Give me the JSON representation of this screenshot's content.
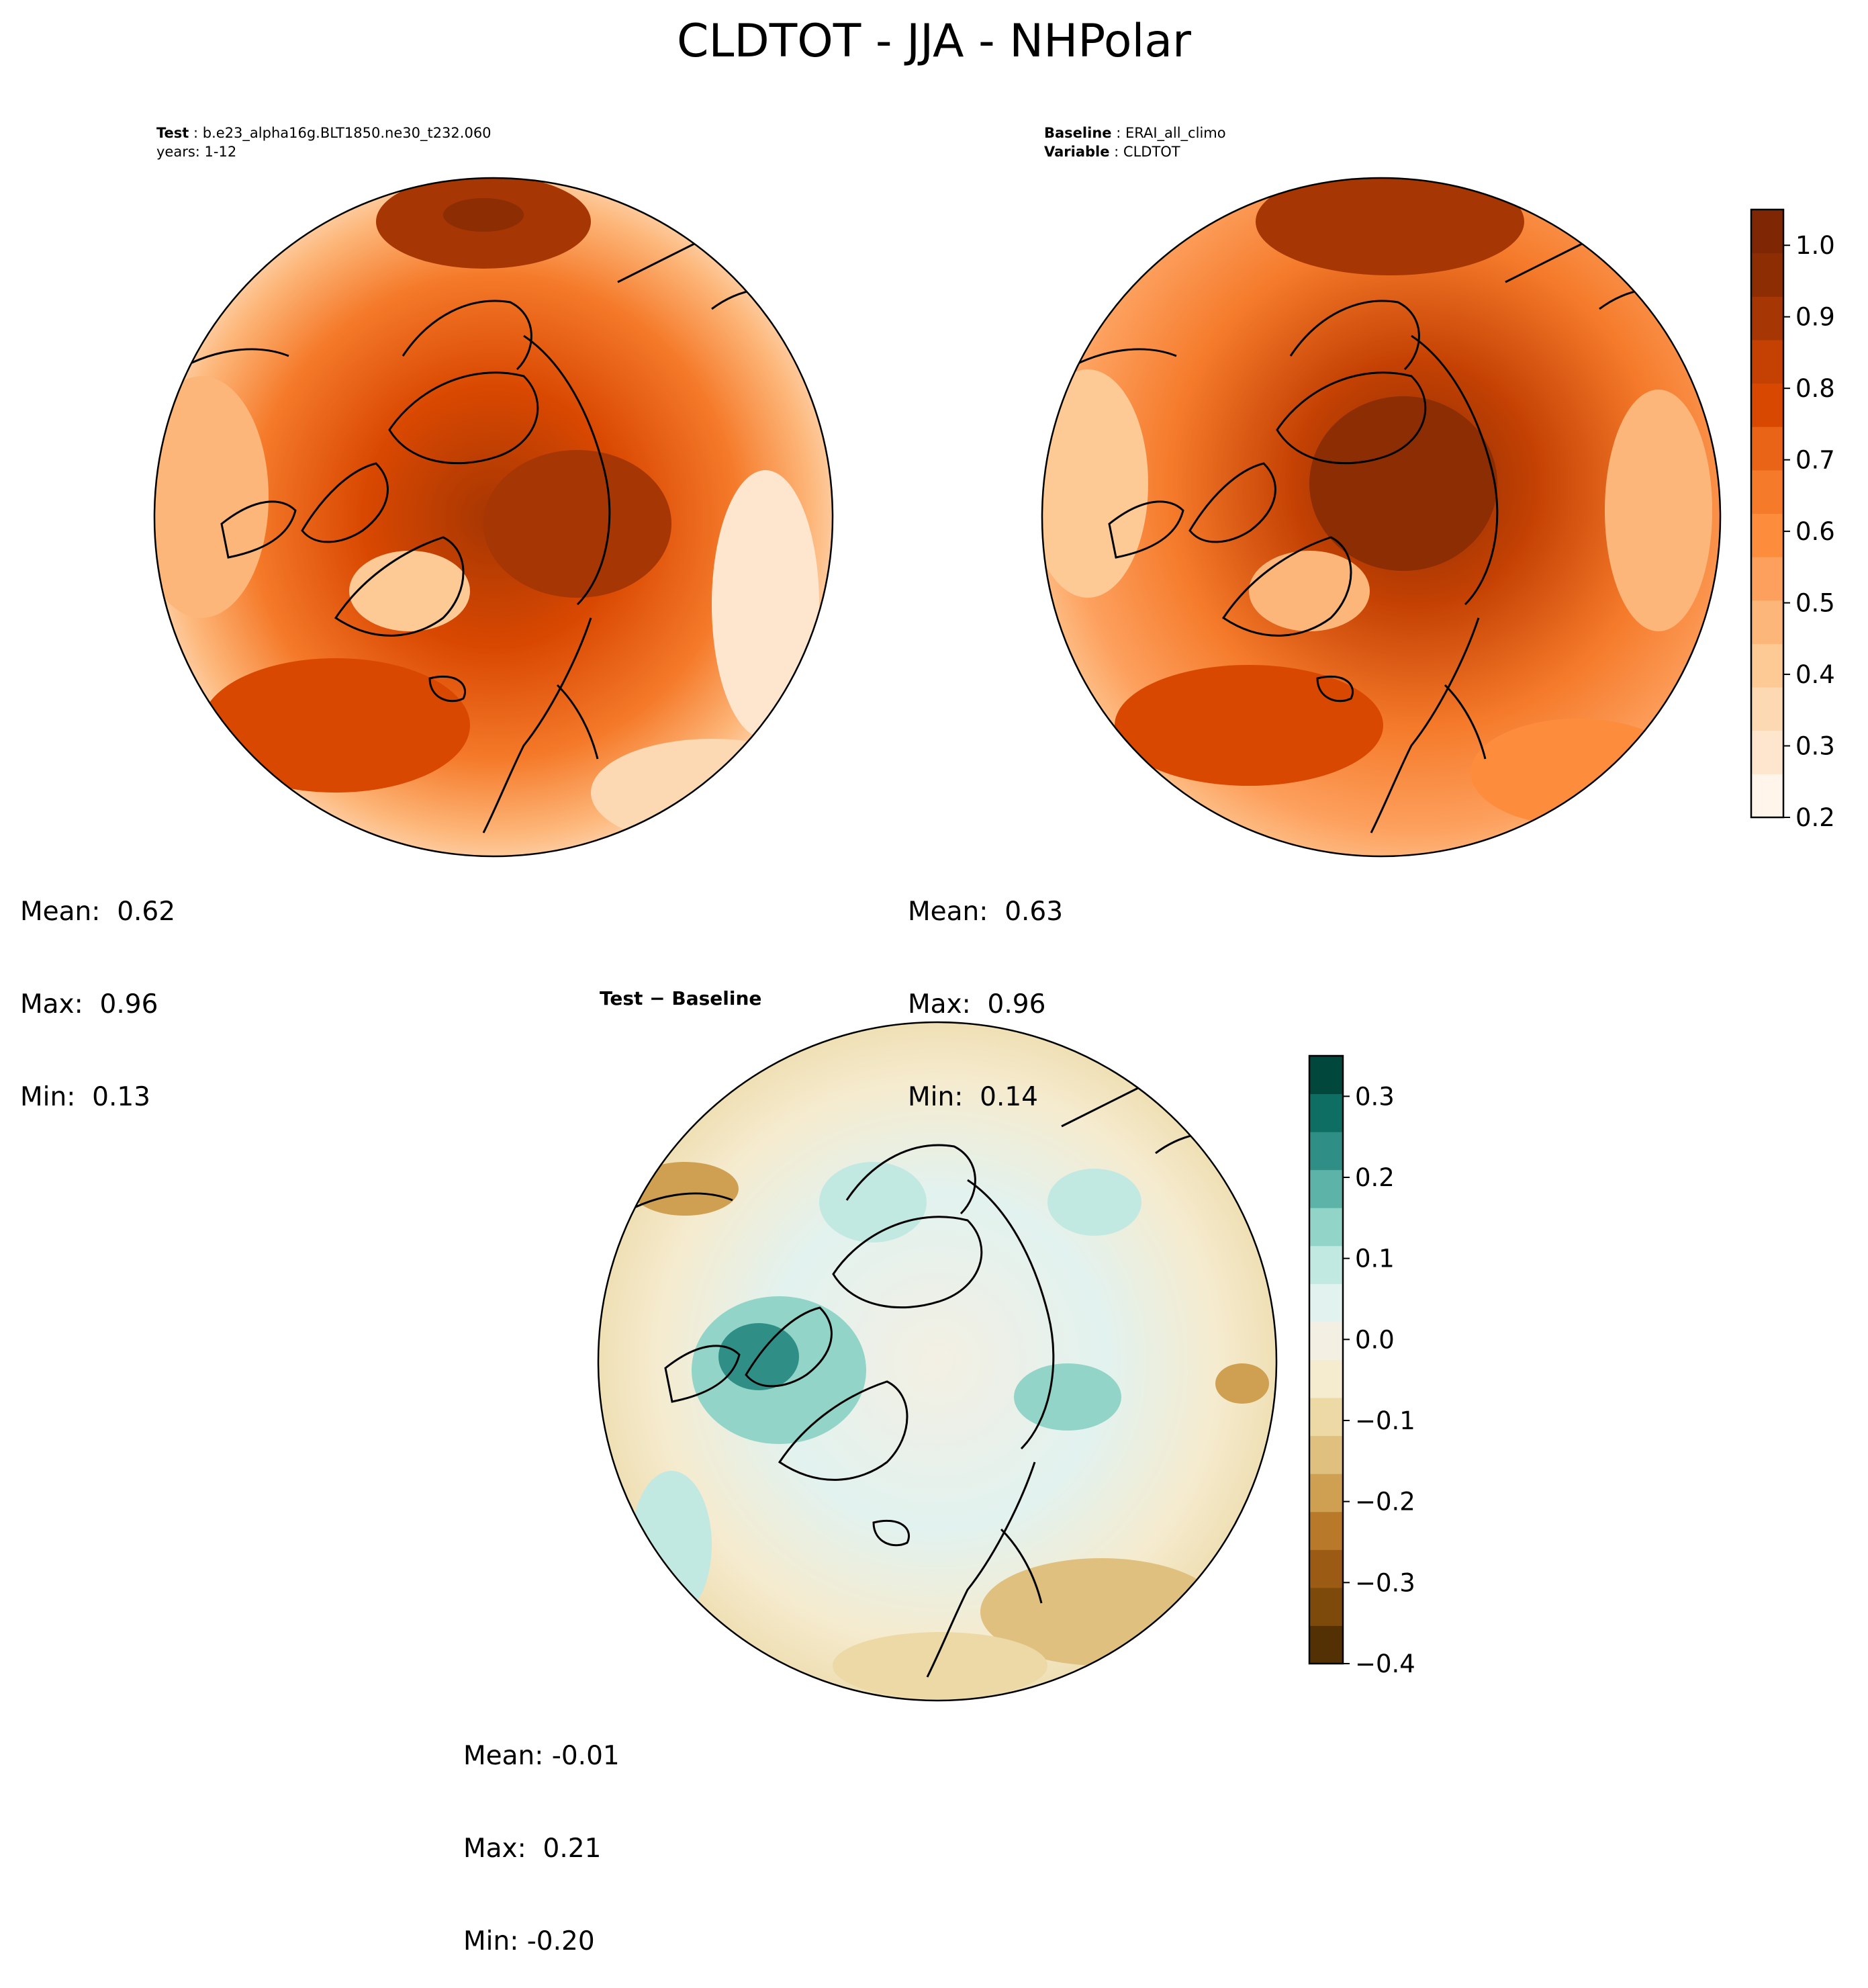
{
  "title": "CLDTOT - JJA - NHPolar",
  "panels": {
    "test": {
      "label_key": "Test",
      "label_value": "b.e23_alpha16g.BLT1850.ne30_t232.060",
      "years": "years: 1-12",
      "stats": {
        "mean": "Mean:  0.62",
        "max": "Max:  0.96",
        "min": "Min:  0.13"
      }
    },
    "baseline": {
      "label_key": "Baseline",
      "label_value": "ERAI_all_climo",
      "var_key": "Variable",
      "var_value": "CLDTOT",
      "stats": {
        "mean": "Mean:  0.63",
        "max": "Max:  0.96",
        "min": "Min:  0.14"
      }
    },
    "diff": {
      "title": "Test − Baseline",
      "stats": {
        "mean": "Mean: -0.01",
        "max": "Max:  0.21",
        "min": "Min: -0.20"
      }
    }
  },
  "colorbars": {
    "field": {
      "ticks": [
        "0.2",
        "0.3",
        "0.4",
        "0.5",
        "0.6",
        "0.7",
        "0.8",
        "0.9",
        "1.0"
      ],
      "range": [
        0.2,
        1.05
      ],
      "colors": [
        "#fff5eb",
        "#fee6ce",
        "#fdd9b3",
        "#fdc995",
        "#fdb679",
        "#fda05e",
        "#fd8d3c",
        "#f57a2a",
        "#ea6417",
        "#d94801",
        "#c44103",
        "#a63603",
        "#8c2d04",
        "#7f2704"
      ]
    },
    "diff": {
      "ticks": [
        "−0.4",
        "−0.3",
        "−0.2",
        "−0.1",
        "0.0",
        "0.1",
        "0.2",
        "0.3"
      ],
      "range": [
        -0.4,
        0.35
      ],
      "colors": [
        "#543005",
        "#7d4a0b",
        "#9b5b14",
        "#b8792b",
        "#cfa052",
        "#dfc07f",
        "#ecd9a6",
        "#f5ebcf",
        "#f3efe3",
        "#e2f2ef",
        "#c2e8e2",
        "#92d4c8",
        "#5eb3a8",
        "#2f8f86",
        "#0f6e64",
        "#01473c"
      ]
    }
  },
  "chart_data": {
    "type": "heatmap",
    "title": "CLDTOT - JJA - NHPolar",
    "projection": "north-polar-stereographic",
    "maps": [
      {
        "name": "Test",
        "case": "b.e23_alpha16g.BLT1850.ne30_t232.060",
        "years": "1-12",
        "colormap": "Oranges",
        "levels_range": [
          0.2,
          1.05
        ],
        "stats": {
          "mean": 0.62,
          "max": 0.96,
          "min": 0.13
        }
      },
      {
        "name": "Baseline",
        "case": "ERAI_all_climo",
        "variable": "CLDTOT",
        "colormap": "Oranges",
        "levels_range": [
          0.2,
          1.05
        ],
        "stats": {
          "mean": 0.63,
          "max": 0.96,
          "min": 0.14
        }
      },
      {
        "name": "Test − Baseline",
        "colormap": "BrBG",
        "levels_range": [
          -0.4,
          0.35
        ],
        "stats": {
          "mean": -0.01,
          "max": 0.21,
          "min": -0.2
        }
      }
    ]
  }
}
